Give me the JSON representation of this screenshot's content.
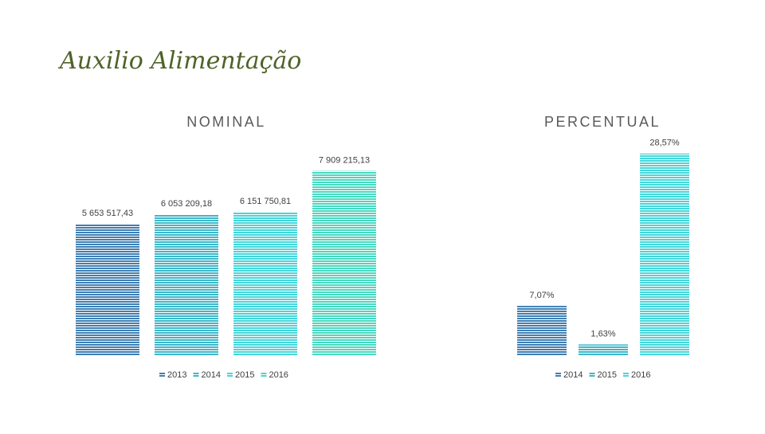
{
  "slide_title": "Auxilio Alimentação",
  "chart_data": [
    {
      "type": "bar",
      "title": "NOMINAL",
      "categories": [
        null
      ],
      "ylim": [
        0,
        8000000
      ],
      "series": [
        {
          "name": "2013",
          "color": "#3f7fb3",
          "values": [
            5653517.43
          ],
          "value_labels": [
            "5 653 517,43"
          ]
        },
        {
          "name": "2014",
          "color": "#3db7c9",
          "values": [
            6053209.18
          ],
          "value_labels": [
            "6 053 209,18"
          ]
        },
        {
          "name": "2015",
          "color": "#45d6da",
          "values": [
            6151750.81
          ],
          "value_labels": [
            "6 151 750,81"
          ]
        },
        {
          "name": "2016",
          "color": "#48d8bf",
          "values": [
            7909215.13
          ],
          "value_labels": [
            "7 909 215,13"
          ]
        }
      ]
    },
    {
      "type": "bar",
      "title": "PERCENTUAL",
      "categories": [
        null
      ],
      "ylim": [
        0,
        30
      ],
      "series": [
        {
          "name": "2014",
          "color": "#3f7fb3",
          "values": [
            7.07
          ],
          "value_labels": [
            "7,07%"
          ]
        },
        {
          "name": "2015",
          "color": "#3db7c9",
          "values": [
            1.63
          ],
          "value_labels": [
            "1,63%"
          ]
        },
        {
          "name": "2016",
          "color": "#45d6da",
          "values": [
            28.57
          ],
          "value_labels": [
            "28,57%"
          ]
        }
      ]
    }
  ]
}
